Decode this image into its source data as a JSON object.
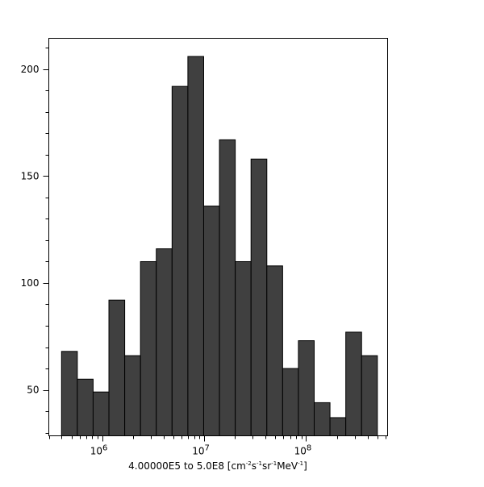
{
  "chart_data": {
    "type": "bar",
    "subtype": "histogram",
    "xscale": "log",
    "xlim": [
      300000,
      630000000
    ],
    "ylim": [
      28.5,
      214.5
    ],
    "bin_edges_range": [
      400000,
      500000000
    ],
    "bin_count_per_decade_note": "",
    "values": [
      68,
      55,
      49,
      92,
      66,
      110,
      116,
      192,
      206,
      136,
      167,
      110,
      158,
      108,
      60,
      73,
      44,
      37,
      77,
      66
    ],
    "xticks": [
      {
        "value": 1000000,
        "base": "10",
        "exp": "6"
      },
      {
        "value": 10000000,
        "base": "10",
        "exp": "7"
      },
      {
        "value": 100000000,
        "base": "10",
        "exp": "8"
      }
    ],
    "yticks": [
      50,
      100,
      150,
      200
    ],
    "yticks_labels": [
      "50",
      "100",
      "150",
      "200"
    ],
    "xlabel": {
      "text": "4.00000E5 to 5.0E8 [cm",
      "sup1": "-2",
      "mid1": "s",
      "sup2": "-1",
      "mid2": "sr",
      "sup3": "-1",
      "mid3": "MeV",
      "sup4": "-1",
      "end": "]"
    },
    "ylabel": "",
    "title": "",
    "grid": false,
    "bar_color": "#404040"
  }
}
